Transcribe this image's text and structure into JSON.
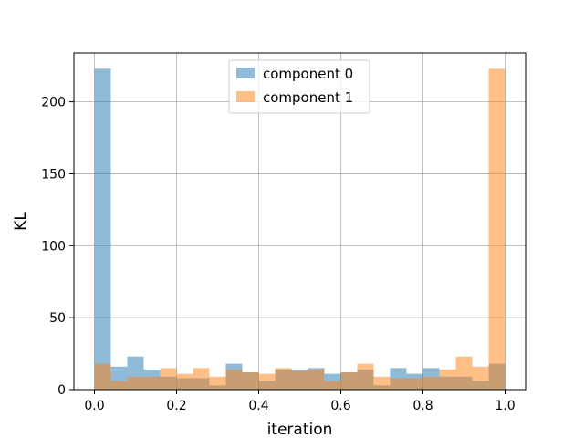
{
  "chart_data": {
    "type": "bar",
    "title": "",
    "xlabel": "iteration",
    "ylabel": "KL",
    "xlim": [
      -0.05,
      1.05
    ],
    "ylim": [
      0,
      234
    ],
    "grid": true,
    "legend_position": "top-center",
    "x_ticks": [
      0.0,
      0.2,
      0.4,
      0.6,
      0.8,
      1.0
    ],
    "x_tick_labels": [
      "0.0",
      "0.2",
      "0.4",
      "0.6",
      "0.8",
      "1.0"
    ],
    "y_ticks": [
      0,
      50,
      100,
      150,
      200
    ],
    "y_tick_labels": [
      "0",
      "50",
      "100",
      "150",
      "200"
    ],
    "bins": {
      "edges": [
        0.0,
        0.04,
        0.08,
        0.12,
        0.16,
        0.2,
        0.24,
        0.28,
        0.32,
        0.36,
        0.4,
        0.44,
        0.48,
        0.52,
        0.56,
        0.6,
        0.64,
        0.68,
        0.72,
        0.76,
        0.8,
        0.84,
        0.88,
        0.92,
        0.96,
        1.0
      ]
    },
    "series": [
      {
        "name": "component 0",
        "color": "#1f77b4",
        "opacity": 0.5,
        "values": [
          223,
          16,
          23,
          14,
          9,
          8,
          8,
          3,
          18,
          12,
          6,
          14,
          14,
          15,
          11,
          12,
          14,
          3,
          15,
          11,
          15,
          9,
          9,
          6,
          18
        ]
      },
      {
        "name": "component 1",
        "color": "#ff7f0e",
        "opacity": 0.5,
        "values": [
          18,
          6,
          9,
          9,
          15,
          11,
          15,
          9,
          14,
          12,
          11,
          15,
          13,
          14,
          6,
          12,
          18,
          9,
          8,
          8,
          9,
          14,
          23,
          16,
          223
        ]
      }
    ]
  }
}
